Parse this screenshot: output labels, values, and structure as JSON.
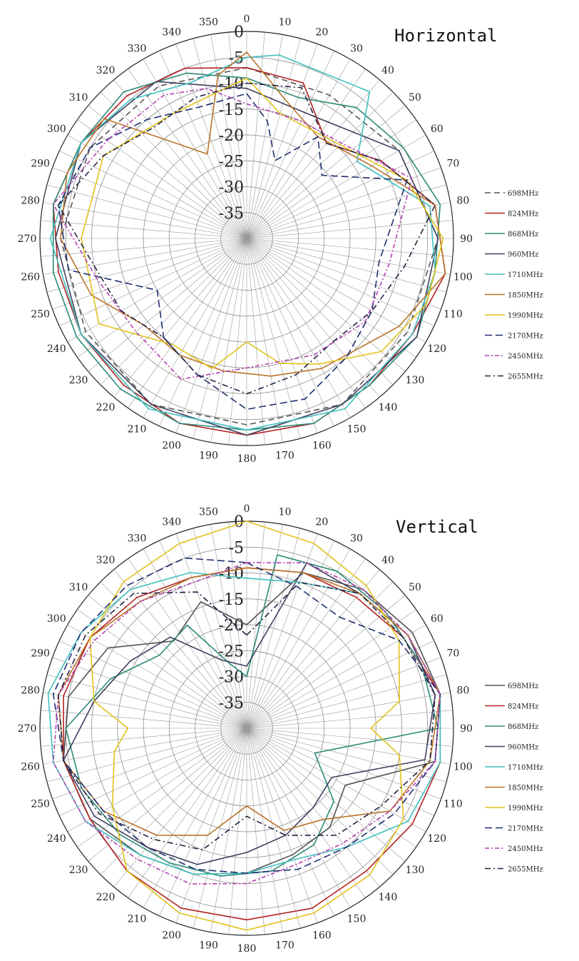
{
  "chart_data": [
    {
      "type": "polar-line",
      "title": "Horizontal",
      "angle_ticks": [
        0,
        10,
        20,
        30,
        40,
        50,
        60,
        70,
        80,
        90,
        100,
        110,
        120,
        130,
        140,
        150,
        160,
        170,
        180,
        190,
        200,
        210,
        220,
        230,
        240,
        250,
        260,
        270,
        280,
        290,
        300,
        310,
        320,
        330,
        340,
        350
      ],
      "radial_ticks": [
        0,
        -5,
        -10,
        -15,
        -20,
        -25,
        -30,
        -35
      ],
      "radial_range": [
        -40,
        0
      ],
      "grid": true,
      "legend_position": "right",
      "series": [
        {
          "name": "698MHz",
          "color": "#555555",
          "dash": "8 5",
          "angles": [
            0,
            30,
            60,
            90,
            120,
            150,
            180,
            210,
            240,
            270,
            300,
            330
          ],
          "values": [
            -7,
            -8,
            -6,
            -3,
            -4,
            -3,
            -4,
            -3,
            -4,
            -4,
            -5,
            -6
          ]
        },
        {
          "name": "824MHz",
          "color": "#b22222",
          "dash": "",
          "angles": [
            0,
            20,
            40,
            60,
            80,
            100,
            120,
            140,
            160,
            180,
            200,
            220,
            240,
            260,
            280,
            300,
            320,
            340
          ],
          "values": [
            -7,
            -8,
            -16,
            -10,
            -3,
            -1,
            -3,
            -3,
            -2,
            -2,
            -2,
            -3,
            -3,
            -3,
            -2,
            -3,
            -4,
            -5
          ]
        },
        {
          "name": "868MHz",
          "color": "#2e8b7a",
          "dash": "",
          "angles": [
            0,
            20,
            40,
            60,
            80,
            100,
            120,
            140,
            160,
            180,
            200,
            220,
            240,
            260,
            280,
            300,
            320,
            340
          ],
          "values": [
            -9,
            -11,
            -7,
            -5,
            -2,
            -3,
            -2,
            -3,
            -2,
            -3,
            -2,
            -2,
            -2,
            -2,
            -2,
            -3,
            -3,
            -6
          ]
        },
        {
          "name": "960MHz",
          "color": "#404060",
          "dash": "",
          "angles": [
            0,
            30,
            60,
            90,
            120,
            150,
            180,
            210,
            240,
            270,
            300,
            330
          ],
          "values": [
            -11,
            -13,
            -6,
            -3,
            -2,
            -3,
            -2,
            -3,
            -3,
            -3,
            -3,
            -5
          ]
        },
        {
          "name": "1710MHz",
          "color": "#3fbfbf",
          "dash": "",
          "angles": [
            0,
            10,
            40,
            55,
            80,
            100,
            120,
            150,
            180,
            210,
            240,
            270,
            300,
            320,
            340
          ],
          "values": [
            -5,
            -4,
            -3,
            -14,
            -4,
            -3,
            -3,
            -2,
            -3,
            -2,
            -3,
            -2,
            -3,
            -5,
            -8
          ]
        },
        {
          "name": "1850MHz",
          "color": "#b8732a",
          "dash": "",
          "angles": [
            0,
            15,
            35,
            60,
            80,
            100,
            120,
            150,
            170,
            190,
            210,
            230,
            250,
            270,
            290,
            310,
            335,
            350
          ],
          "values": [
            -4,
            -12,
            -16,
            -12,
            -3,
            -1,
            -6,
            -11,
            -13,
            -14,
            -14,
            -14,
            -8,
            -4,
            -3,
            -4,
            -22,
            -8
          ]
        },
        {
          "name": "1990MHz",
          "color": "#e0c21a",
          "dash": "",
          "angles": [
            0,
            15,
            40,
            70,
            90,
            110,
            130,
            150,
            165,
            180,
            195,
            215,
            240,
            270,
            300,
            330,
            350
          ],
          "values": [
            -9,
            -15,
            -15,
            -7,
            -2,
            -3,
            -6,
            -12,
            -15,
            -20,
            -14,
            -15,
            -7,
            -8,
            -8,
            -12,
            -11
          ]
        },
        {
          "name": "2170MHz",
          "color": "#1f2f6f",
          "dash": "10 5",
          "angles": [
            0,
            10,
            20,
            35,
            50,
            70,
            100,
            120,
            140,
            160,
            180,
            200,
            220,
            240,
            260,
            280,
            300,
            320,
            340
          ],
          "values": [
            -12,
            -17,
            -24,
            -16,
            -21,
            -7,
            -14,
            -12,
            -10,
            -7,
            -7,
            -12,
            -15,
            -20,
            -5,
            -3,
            -5,
            -10,
            -13
          ]
        },
        {
          "name": "2450MHz",
          "color": "#b040b0",
          "dash": "6 3 2 3",
          "angles": [
            0,
            25,
            45,
            70,
            100,
            125,
            150,
            180,
            205,
            230,
            255,
            280,
            305,
            330,
            345
          ],
          "values": [
            -14,
            -15,
            -14,
            -6,
            -12,
            -12,
            -14,
            -15,
            -10,
            -12,
            -10,
            -2,
            -7,
            -8,
            -10
          ]
        },
        {
          "name": "2655MHz",
          "color": "#222244",
          "dash": "8 4 2 4",
          "angles": [
            0,
            20,
            40,
            60,
            80,
            100,
            120,
            140,
            160,
            180,
            200,
            220,
            240,
            260,
            280,
            300,
            320,
            340
          ],
          "values": [
            -10,
            -9,
            -16,
            -10,
            -3,
            -9,
            -12,
            -14,
            -12,
            -10,
            -12,
            -15,
            -12,
            -10,
            -3,
            -8,
            -12,
            -11
          ]
        }
      ]
    },
    {
      "type": "polar-line",
      "title": "Vertical",
      "angle_ticks": [
        0,
        10,
        20,
        30,
        40,
        50,
        60,
        70,
        80,
        90,
        100,
        110,
        120,
        130,
        140,
        150,
        160,
        170,
        180,
        190,
        200,
        210,
        220,
        230,
        240,
        250,
        260,
        270,
        280,
        290,
        300,
        310,
        320,
        330,
        340,
        350
      ],
      "radial_ticks": [
        0,
        -5,
        -10,
        -15,
        -20,
        -25,
        -30,
        -35
      ],
      "radial_range": [
        -40,
        0
      ],
      "grid": true,
      "legend_position": "right",
      "series": [
        {
          "name": "698MHz",
          "color": "#555555",
          "dash": "",
          "angles": [
            0,
            20,
            40,
            60,
            80,
            100,
            120,
            140,
            160,
            180,
            200,
            220,
            240,
            260,
            280,
            300,
            320,
            340
          ],
          "values": [
            -20,
            -8,
            -5,
            -3,
            -2,
            -3,
            -18,
            -15,
            -14,
            -12,
            -10,
            -8,
            -5,
            -4,
            -5,
            -9,
            -18,
            -14
          ]
        },
        {
          "name": "824MHz",
          "color": "#b22222",
          "dash": "",
          "angles": [
            0,
            20,
            40,
            60,
            80,
            100,
            120,
            140,
            160,
            180,
            200,
            220,
            240,
            260,
            280,
            300,
            320,
            340
          ],
          "values": [
            -9,
            -8,
            -7,
            -5,
            -2,
            -2,
            -3,
            -4,
            -3,
            -3,
            -3,
            -4,
            -5,
            -4,
            -4,
            -5,
            -7,
            -9
          ]
        },
        {
          "name": "868MHz",
          "color": "#2e8b7a",
          "dash": "",
          "angles": [
            0,
            10,
            30,
            50,
            70,
            90,
            110,
            130,
            150,
            170,
            190,
            210,
            230,
            250,
            270,
            290,
            310,
            330,
            345
          ],
          "values": [
            -30,
            -6,
            -5,
            -5,
            -4,
            -3,
            -26,
            -18,
            -14,
            -12,
            -11,
            -10,
            -8,
            -6,
            -5,
            -12,
            -18,
            -17,
            -27
          ]
        },
        {
          "name": "960MHz",
          "color": "#404060",
          "dash": "",
          "angles": [
            0,
            20,
            40,
            60,
            80,
            100,
            120,
            140,
            160,
            180,
            200,
            220,
            240,
            260,
            280,
            300,
            320,
            340
          ],
          "values": [
            -28,
            -6,
            -6,
            -4,
            -3,
            -5,
            -21,
            -20,
            -18,
            -16,
            -12,
            -10,
            -6,
            -4,
            -10,
            -14,
            -17,
            -26
          ]
        },
        {
          "name": "1710MHz",
          "color": "#3fbfbf",
          "dash": "",
          "angles": [
            0,
            20,
            40,
            60,
            80,
            100,
            120,
            140,
            160,
            180,
            200,
            220,
            240,
            260,
            280,
            300,
            320,
            340
          ],
          "values": [
            -11,
            -10,
            -6,
            -4,
            -2,
            -2,
            -4,
            -10,
            -13,
            -12,
            -10,
            -8,
            -4,
            -2,
            -1,
            -3,
            -5,
            -8
          ]
        },
        {
          "name": "1850MHz",
          "color": "#b8732a",
          "dash": "",
          "angles": [
            0,
            20,
            40,
            60,
            80,
            100,
            120,
            140,
            160,
            180,
            200,
            220,
            240,
            260,
            280,
            300,
            320,
            340
          ],
          "values": [
            -9,
            -8,
            -6,
            -4,
            -2,
            -4,
            -8,
            -17,
            -19,
            -25,
            -18,
            -13,
            -8,
            -4,
            -3,
            -5,
            -8,
            -9
          ]
        },
        {
          "name": "1990MHz",
          "color": "#e0c21a",
          "dash": "",
          "angles": [
            0,
            20,
            40,
            60,
            80,
            90,
            100,
            120,
            140,
            160,
            180,
            200,
            220,
            240,
            260,
            270,
            280,
            300,
            320,
            340
          ],
          "values": [
            0,
            -2,
            -4,
            -6,
            -10,
            -16,
            -10,
            -5,
            -3,
            -2,
            -1,
            -2,
            -4,
            -10,
            -14,
            -17,
            -10,
            -5,
            -3,
            -2
          ]
        },
        {
          "name": "2170MHz",
          "color": "#1f2f6f",
          "dash": "10 5",
          "angles": [
            0,
            20,
            40,
            60,
            80,
            100,
            120,
            140,
            160,
            180,
            200,
            220,
            240,
            260,
            280,
            300,
            320,
            340
          ],
          "values": [
            -8,
            -11,
            -12,
            -6,
            -2,
            -3,
            -7,
            -10,
            -11,
            -12,
            -11,
            -10,
            -8,
            -4,
            -2,
            -3,
            -4,
            -5
          ]
        },
        {
          "name": "2450MHz",
          "color": "#b040b0",
          "dash": "6 3 2 3",
          "angles": [
            0,
            20,
            40,
            60,
            80,
            100,
            120,
            140,
            160,
            180,
            200,
            220,
            240,
            260,
            280,
            300,
            320,
            340
          ],
          "values": [
            -8,
            -6,
            -5,
            -4,
            -2,
            -3,
            -8,
            -11,
            -12,
            -10,
            -8,
            -7,
            -4,
            -2,
            -3,
            -6,
            -8,
            -10
          ]
        },
        {
          "name": "2655MHz",
          "color": "#222244",
          "dash": "8 4 2 4",
          "angles": [
            0,
            20,
            40,
            60,
            80,
            100,
            120,
            140,
            160,
            180,
            200,
            220,
            240,
            260,
            280,
            300,
            320,
            340
          ],
          "values": [
            -22,
            -10,
            -6,
            -5,
            -3,
            -4,
            -10,
            -13,
            -18,
            -23,
            -15,
            -12,
            -7,
            -4,
            -3,
            -4,
            -6,
            -12
          ]
        }
      ]
    }
  ]
}
